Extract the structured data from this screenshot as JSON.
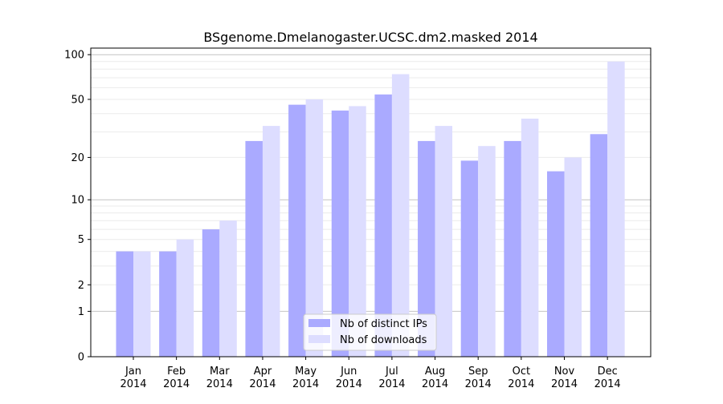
{
  "chart_data": {
    "type": "bar",
    "title": "BSgenome.Dmelanogaster.UCSC.dm2.masked 2014",
    "xlabel": "",
    "ylabel": "",
    "yscale": "log10(y+1)",
    "ylim": [
      0,
      110
    ],
    "yticks": [
      0,
      1,
      2,
      5,
      10,
      20,
      50,
      100
    ],
    "categories": [
      "Jan\n2014",
      "Feb\n2014",
      "Mar\n2014",
      "Apr\n2014",
      "May\n2014",
      "Jun\n2014",
      "Jul\n2014",
      "Aug\n2014",
      "Sep\n2014",
      "Oct\n2014",
      "Nov\n2014",
      "Dec\n2014"
    ],
    "series": [
      {
        "name": "Nb of distinct IPs",
        "color": "#aaaaff",
        "values": [
          4,
          4,
          6,
          26,
          46,
          42,
          54,
          26,
          19,
          26,
          16,
          29
        ]
      },
      {
        "name": "Nb of downloads",
        "color": "#ddddff",
        "values": [
          4,
          5,
          7,
          33,
          50,
          45,
          74,
          33,
          24,
          37,
          20,
          90
        ]
      }
    ],
    "grid": true,
    "legend": "bottom-center"
  }
}
